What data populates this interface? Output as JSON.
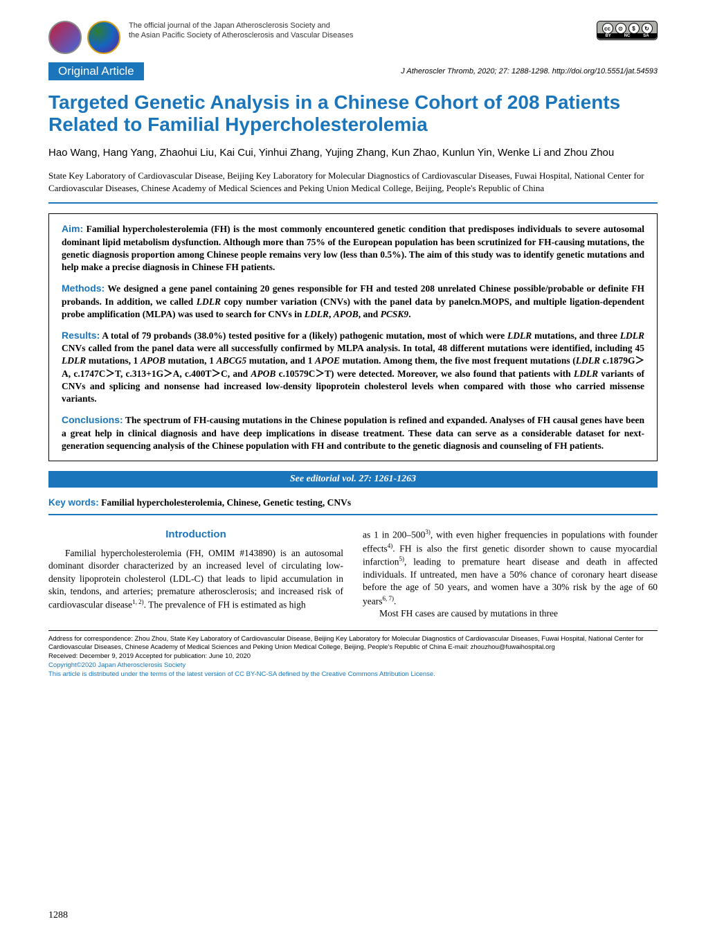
{
  "header": {
    "journal_line1": "The official journal of the Japan Atherosclerosis Society and",
    "journal_line2": "the Asian Pacific Society of Atherosclerosis and Vascular Diseases",
    "cc_labels": [
      "BY",
      "NC",
      "SA"
    ]
  },
  "article_type": "Original Article",
  "citation": "J Atheroscler Thromb, 2020; 27: 1288-1298.   http://doi.org/10.5551/jat.54593",
  "title": "Targeted Genetic Analysis in a Chinese Cohort of 208 Patients Related to Familial Hypercholesterolemia",
  "authors": "Hao Wang, Hang Yang, Zhaohui Liu, Kai Cui, Yinhui Zhang, Yujing Zhang, Kun Zhao, Kunlun Yin, Wenke Li and Zhou Zhou",
  "affiliation": "State Key Laboratory of Cardiovascular Disease, Beijing Key Laboratory for Molecular Diagnostics of Cardiovascular Diseases, Fuwai Hospital, National Center for Cardiovascular Diseases, Chinese Academy of Medical Sciences and Peking Union Medical College, Beijing, People's Republic of China",
  "abstract": {
    "aim_label": "Aim:",
    "aim_text": " Familial hypercholesterolemia (FH) is the most commonly encountered genetic condition that predisposes individuals to severe autosomal dominant lipid metabolism dysfunction. Although more than 75% of the European population has been scrutinized for FH-causing mutations, the genetic diagnosis proportion among Chinese people remains very low (less than 0.5%). The aim of this study was to identify genetic mutations and help make a precise diagnosis in Chinese FH patients.",
    "methods_label": "Methods:",
    "results_label": "Results:",
    "conclusions_label": "Conclusions:",
    "conclusions_text": " The spectrum of FH-causing mutations in the Chinese population is refined and expanded. Analyses of FH causal genes have been a great help in clinical diagnosis and have deep implications in disease treatment. These data can serve as a considerable dataset for next-generation sequencing analysis of the Chinese population with FH and contribute to the genetic diagnosis and counseling of FH patients."
  },
  "editorial_note": "See editorial vol. 27: 1261-1263",
  "keywords_label": "Key words:",
  "keywords_text": " Familial hypercholesterolemia, Chinese, Genetic testing, CNVs",
  "intro_heading": "Introduction",
  "footer": {
    "correspondence": "Address for correspondence: Zhou Zhou, State Key Laboratory of Cardiovascular Disease, Beijing Key Laboratory for Molecular Diagnostics of Cardiovascular Diseases, Fuwai Hospital, National Center for Cardiovascular Diseases, Chinese Academy of Medical Sciences and Peking Union Medical College, Beijing, People's Republic of China     E-mail: zhouzhou@fuwaihospital.org",
    "received": "Received: December 9, 2019     Accepted for publication: June 10, 2020",
    "copyright": "Copyright©2020 Japan Atherosclerosis Society",
    "license": "This article is distributed under the terms of the latest version of CC BY-NC-SA defined by the Creative Commons Attribution License."
  },
  "page_number": "1288",
  "colors": {
    "brand_blue": "#1b75bb",
    "text": "#000000",
    "bg": "#ffffff"
  }
}
